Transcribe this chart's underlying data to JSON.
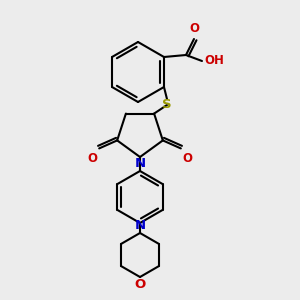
{
  "bg_color": "#ececec",
  "bond_color": "#000000",
  "bond_width": 1.5,
  "S_color": "#999900",
  "N_color": "#0000cc",
  "O_color": "#cc0000",
  "font_size": 8.5,
  "fig_width": 3.0,
  "fig_height": 3.0,
  "dpi": 100,
  "xlim": [
    0,
    300
  ],
  "ylim": [
    0,
    300
  ]
}
